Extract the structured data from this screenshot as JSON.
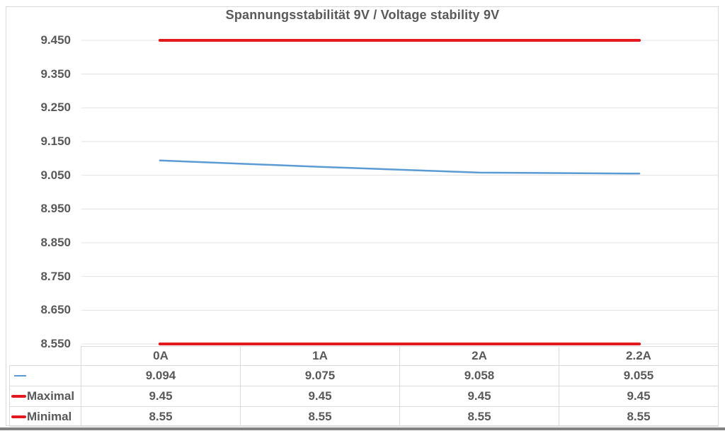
{
  "title": "Spannungsstabilität 9V / Voltage stability 9V",
  "chart_data": {
    "type": "line",
    "categories": [
      "0A",
      "1A",
      "2A",
      "2.2A"
    ],
    "series": [
      {
        "name": "",
        "values": [
          9.094,
          9.075,
          9.058,
          9.055
        ],
        "color": "#5b9bd5",
        "line_width": 2.5,
        "marker": "thin"
      },
      {
        "name": "Maximal",
        "values": [
          9.45,
          9.45,
          9.45,
          9.45
        ],
        "color": "#e2191f",
        "line_width": 4,
        "marker": "thick"
      },
      {
        "name": "Minimal",
        "values": [
          8.55,
          8.55,
          8.55,
          8.55
        ],
        "color": "#e2191f",
        "line_width": 4,
        "marker": "thick"
      }
    ],
    "title": "Spannungsstabilität 9V / Voltage stability 9V",
    "xlabel": "",
    "ylabel": "",
    "ylim": [
      8.55,
      9.45
    ],
    "ytick_step": 0.1,
    "ytick_labels": [
      "9.450",
      "9.350",
      "9.250",
      "9.150",
      "9.050",
      "8.950",
      "8.850",
      "8.750",
      "8.650",
      "8.550"
    ],
    "grid": true,
    "gridline_color": "#e3e3e3",
    "legend_position": "data-table-left"
  },
  "table": {
    "column_headers": [
      "0A",
      "1A",
      "2A",
      "2.2A"
    ],
    "row_labels": [
      "",
      "Maximal",
      "Minimal"
    ],
    "cells": [
      [
        "9.094",
        "9.075",
        "9.058",
        "9.055"
      ],
      [
        "9.45",
        "9.45",
        "9.45",
        "9.45"
      ],
      [
        "8.55",
        "8.55",
        "8.55",
        "8.55"
      ]
    ]
  },
  "colors": {
    "text": "#595959",
    "series_blue": "#5b9bd5",
    "limit_red": "#e2191f",
    "gridline": "#e3e3e3",
    "table_border": "#dcdcdc",
    "frame_border": "#d9d9d9",
    "bottom_bar": "#828282"
  }
}
